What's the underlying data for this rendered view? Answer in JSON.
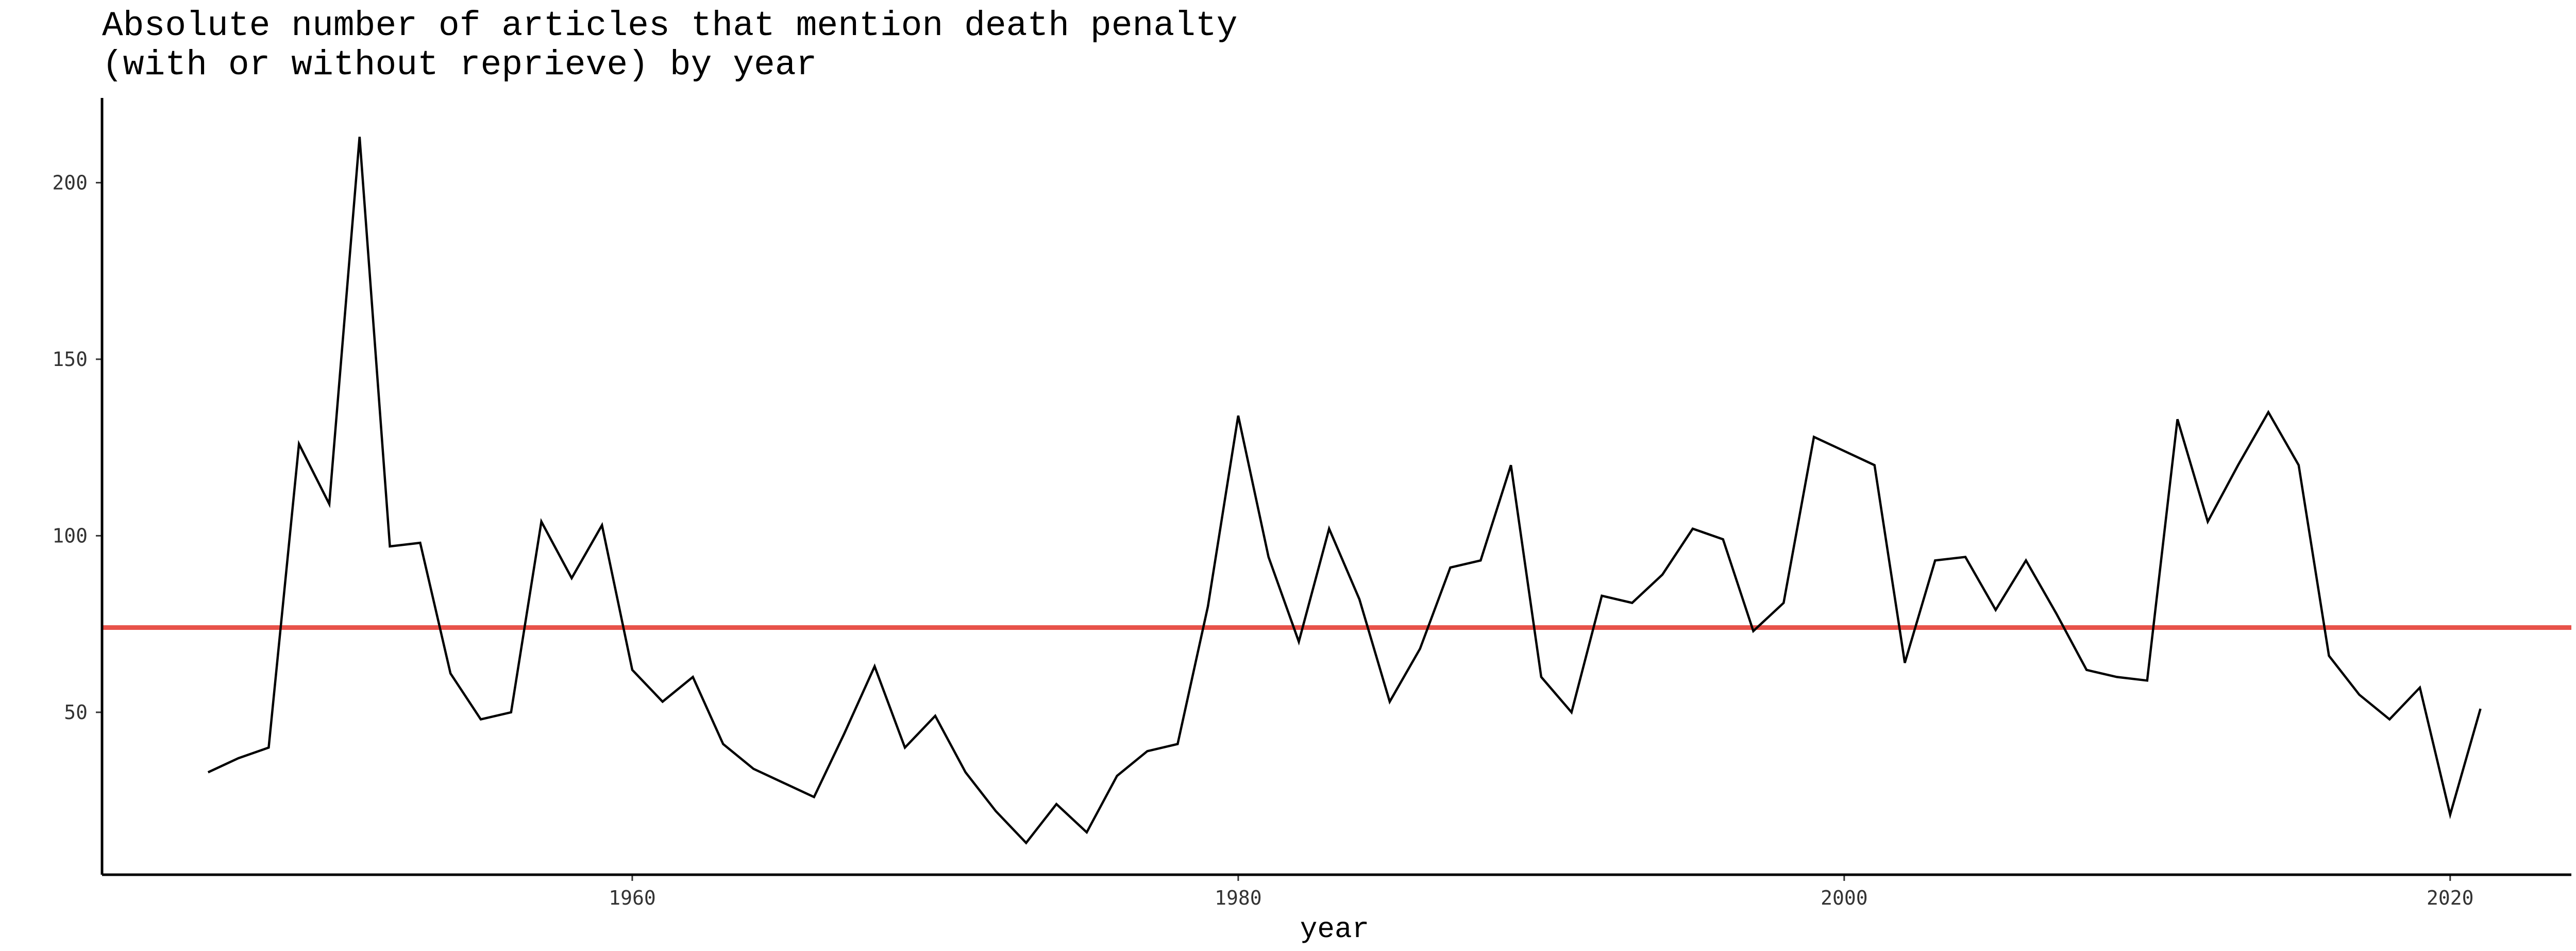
{
  "chart_data": {
    "type": "line",
    "title_lines": [
      "Absolute number of articles that mention death penalty",
      "(with or without reprieve) by year"
    ],
    "xlabel": "year",
    "ylabel": "",
    "xlim": [
      1942.5,
      2024
    ],
    "ylim": [
      4,
      224
    ],
    "x_ticks": [
      1960,
      1980,
      2000,
      2020
    ],
    "y_ticks": [
      50,
      100,
      150,
      200
    ],
    "grid": false,
    "reference_line": {
      "y": 74,
      "color": "#e8524a"
    },
    "line_color": "#000000",
    "x": [
      1946,
      1947,
      1948,
      1949,
      1950,
      1951,
      1952,
      1953,
      1954,
      1955,
      1956,
      1957,
      1958,
      1959,
      1960,
      1961,
      1962,
      1963,
      1964,
      1965,
      1966,
      1967,
      1968,
      1969,
      1970,
      1971,
      1972,
      1973,
      1974,
      1975,
      1976,
      1977,
      1978,
      1979,
      1980,
      1981,
      1982,
      1983,
      1984,
      1985,
      1986,
      1987,
      1988,
      1989,
      1990,
      1991,
      1992,
      1993,
      1994,
      1995,
      1996,
      1997,
      1998,
      1999,
      2000,
      2001,
      2002,
      2003,
      2004,
      2005,
      2006,
      2007,
      2008,
      2009,
      2010,
      2011,
      2012,
      2013,
      2014,
      2015,
      2016,
      2017,
      2018,
      2019,
      2020,
      2021
    ],
    "y": [
      33,
      37,
      40,
      126,
      109,
      213,
      97,
      98,
      61,
      48,
      50,
      104,
      88,
      103,
      62,
      53,
      60,
      41,
      34,
      30,
      26,
      44,
      63,
      40,
      49,
      33,
      22,
      13,
      24,
      16,
      32,
      39,
      41,
      80,
      134,
      94,
      70,
      102,
      82,
      53,
      68,
      91,
      93,
      120,
      60,
      50,
      83,
      81,
      89,
      102,
      99,
      73,
      81,
      128,
      124,
      120,
      64,
      93,
      94,
      79,
      93,
      78,
      62,
      60,
      59,
      133,
      104,
      120,
      135,
      120,
      66,
      55,
      48,
      57,
      21,
      51
    ]
  }
}
